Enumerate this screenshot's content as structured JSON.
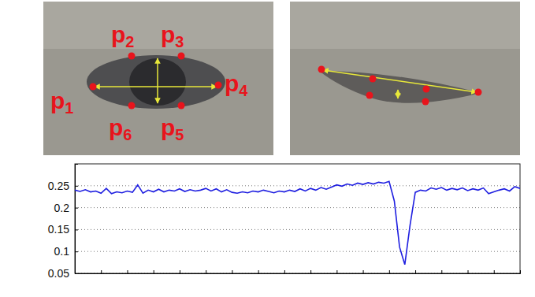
{
  "chart_data": {
    "type": "line",
    "color": "#1f1fe0",
    "x": [
      0,
      2,
      4,
      6,
      8,
      10,
      12,
      14,
      16,
      18,
      20,
      22,
      24,
      26,
      28,
      30,
      32,
      34,
      36,
      38,
      40,
      42,
      44,
      46,
      48,
      50,
      52,
      54,
      56,
      58,
      60,
      62,
      64,
      66,
      68,
      70,
      72,
      74,
      76,
      78,
      80,
      82,
      84,
      86,
      88,
      90,
      92,
      94,
      96,
      98,
      100,
      102,
      104,
      106,
      108,
      110,
      112,
      114,
      116,
      118,
      120,
      122,
      124,
      126,
      128,
      130,
      132,
      134,
      136,
      138,
      140,
      142,
      144,
      146,
      148,
      150,
      152,
      154,
      156,
      158,
      160,
      162,
      164,
      166,
      168,
      170
    ],
    "values": [
      0.24,
      0.237,
      0.241,
      0.236,
      0.238,
      0.233,
      0.244,
      0.232,
      0.236,
      0.234,
      0.238,
      0.235,
      0.252,
      0.233,
      0.24,
      0.236,
      0.242,
      0.236,
      0.24,
      0.238,
      0.243,
      0.237,
      0.241,
      0.238,
      0.24,
      0.244,
      0.238,
      0.243,
      0.236,
      0.241,
      0.235,
      0.233,
      0.236,
      0.234,
      0.238,
      0.236,
      0.24,
      0.237,
      0.234,
      0.238,
      0.236,
      0.24,
      0.237,
      0.243,
      0.238,
      0.244,
      0.24,
      0.246,
      0.242,
      0.247,
      0.252,
      0.249,
      0.254,
      0.251,
      0.256,
      0.253,
      0.257,
      0.254,
      0.258,
      0.256,
      0.26,
      0.215,
      0.11,
      0.07,
      0.16,
      0.235,
      0.24,
      0.238,
      0.245,
      0.242,
      0.246,
      0.24,
      0.244,
      0.241,
      0.245,
      0.239,
      0.243,
      0.24,
      0.245,
      0.232,
      0.236,
      0.24,
      0.243,
      0.238,
      0.248,
      0.244
    ],
    "xlim": [
      0,
      170
    ],
    "xticks": [
      0,
      10,
      20,
      30,
      40,
      50,
      60,
      70,
      80,
      90,
      100,
      110,
      120,
      130,
      140,
      150,
      160,
      170
    ],
    "ylim": [
      0.05,
      0.3
    ],
    "yticks": [
      0.05,
      0.1,
      0.15,
      0.2,
      0.25
    ],
    "grid": true,
    "tick_labels": "y"
  },
  "eye_images": [
    {
      "landmarks": [
        {
          "label": "p",
          "sub": "1"
        },
        {
          "label": "p",
          "sub": "2"
        },
        {
          "label": "p",
          "sub": "3"
        },
        {
          "label": "p",
          "sub": "4"
        },
        {
          "label": "p",
          "sub": "5"
        },
        {
          "label": "p",
          "sub": "6"
        }
      ]
    }
  ]
}
